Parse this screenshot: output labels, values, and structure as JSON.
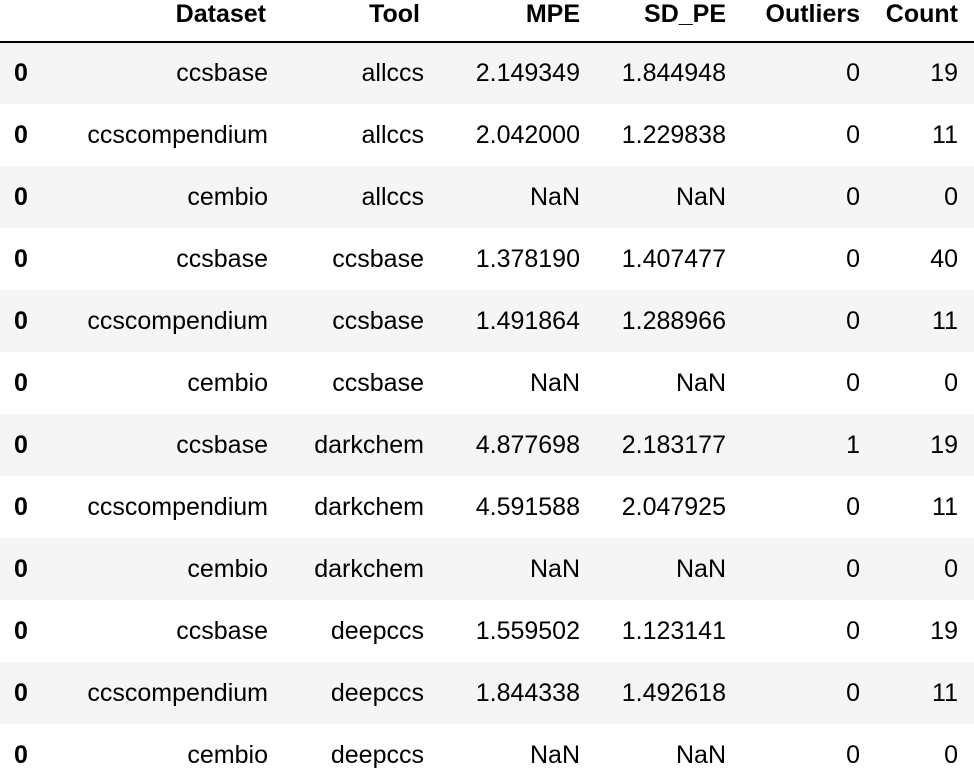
{
  "table": {
    "columns": [
      "",
      "Dataset",
      "Tool",
      "MPE",
      "SD_PE",
      "Outliers",
      "Count"
    ],
    "rows": [
      {
        "index": "0",
        "dataset": "ccsbase",
        "tool": "allccs",
        "mpe": "2.149349",
        "sd_pe": "1.844948",
        "outliers": "0",
        "count": "19"
      },
      {
        "index": "0",
        "dataset": "ccscompendium",
        "tool": "allccs",
        "mpe": "2.042000",
        "sd_pe": "1.229838",
        "outliers": "0",
        "count": "11"
      },
      {
        "index": "0",
        "dataset": "cembio",
        "tool": "allccs",
        "mpe": "NaN",
        "sd_pe": "NaN",
        "outliers": "0",
        "count": "0"
      },
      {
        "index": "0",
        "dataset": "ccsbase",
        "tool": "ccsbase",
        "mpe": "1.378190",
        "sd_pe": "1.407477",
        "outliers": "0",
        "count": "40"
      },
      {
        "index": "0",
        "dataset": "ccscompendium",
        "tool": "ccsbase",
        "mpe": "1.491864",
        "sd_pe": "1.288966",
        "outliers": "0",
        "count": "11"
      },
      {
        "index": "0",
        "dataset": "cembio",
        "tool": "ccsbase",
        "mpe": "NaN",
        "sd_pe": "NaN",
        "outliers": "0",
        "count": "0"
      },
      {
        "index": "0",
        "dataset": "ccsbase",
        "tool": "darkchem",
        "mpe": "4.877698",
        "sd_pe": "2.183177",
        "outliers": "1",
        "count": "19"
      },
      {
        "index": "0",
        "dataset": "ccscompendium",
        "tool": "darkchem",
        "mpe": "4.591588",
        "sd_pe": "2.047925",
        "outliers": "0",
        "count": "11"
      },
      {
        "index": "0",
        "dataset": "cembio",
        "tool": "darkchem",
        "mpe": "NaN",
        "sd_pe": "NaN",
        "outliers": "0",
        "count": "0"
      },
      {
        "index": "0",
        "dataset": "ccsbase",
        "tool": "deepccs",
        "mpe": "1.559502",
        "sd_pe": "1.123141",
        "outliers": "0",
        "count": "19"
      },
      {
        "index": "0",
        "dataset": "ccscompendium",
        "tool": "deepccs",
        "mpe": "1.844338",
        "sd_pe": "1.492618",
        "outliers": "0",
        "count": "11"
      },
      {
        "index": "0",
        "dataset": "cembio",
        "tool": "deepccs",
        "mpe": "NaN",
        "sd_pe": "NaN",
        "outliers": "0",
        "count": "0"
      }
    ]
  },
  "colors": {
    "stripe": "#f5f5f5",
    "text": "#000000",
    "rule": "#000000"
  }
}
